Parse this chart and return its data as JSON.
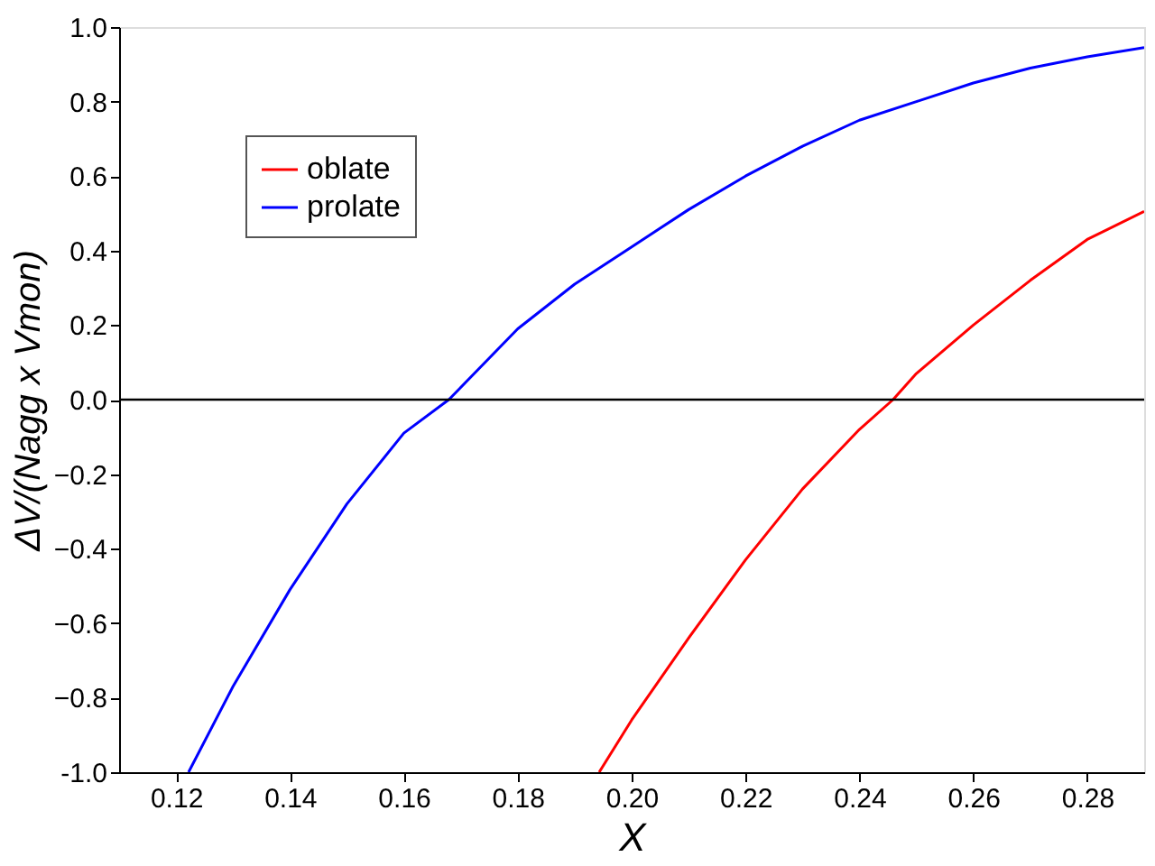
{
  "chart_data": {
    "type": "line",
    "xlabel": "X",
    "ylabel": "ΔV/(Nagg x Vmon)",
    "xlim": [
      0.11,
      0.29
    ],
    "ylim": [
      -1.0,
      1.0
    ],
    "xticks": [
      0.12,
      0.14,
      0.16,
      0.18,
      {
        "value": 0.2,
        "label": "0.20"
      },
      0.22,
      0.24,
      0.26,
      0.28
    ],
    "yticks": [
      {
        "value": -1.0,
        "label": "-1.0"
      },
      -0.8,
      -0.6,
      -0.4,
      -0.2,
      {
        "value": 0.0,
        "label": "0.0"
      },
      0.2,
      0.4,
      0.6,
      0.8,
      {
        "value": 1.0,
        "label": "1.0"
      }
    ],
    "series": [
      {
        "name": "oblate",
        "color": "#ff0000",
        "x": [
          0.1943,
          0.2,
          0.21,
          0.22,
          0.23,
          0.24,
          0.2459,
          0.25,
          0.26,
          0.27,
          0.28,
          0.29
        ],
        "values": [
          -1.0,
          -0.86,
          -0.64,
          -0.43,
          -0.24,
          -0.08,
          0.0,
          0.07,
          0.2,
          0.32,
          0.43,
          0.505
        ]
      },
      {
        "name": "prolate",
        "color": "#0000ff",
        "x": [
          0.1222,
          0.13,
          0.14,
          0.15,
          0.16,
          0.1679,
          0.18,
          0.19,
          0.2,
          0.21,
          0.22,
          0.23,
          0.24,
          0.25,
          0.26,
          0.27,
          0.28,
          0.29
        ],
        "values": [
          -1.0,
          -0.77,
          -0.51,
          -0.28,
          -0.09,
          0.0,
          0.19,
          0.31,
          0.41,
          0.51,
          0.6,
          0.68,
          0.75,
          0.8,
          0.85,
          0.89,
          0.92,
          0.945
        ]
      }
    ],
    "ref_lines": [
      {
        "axis": "y",
        "value": 0,
        "color": "#000000"
      }
    ],
    "legend": "top left",
    "grid": false,
    "marker": "none",
    "line_style": "solid"
  }
}
